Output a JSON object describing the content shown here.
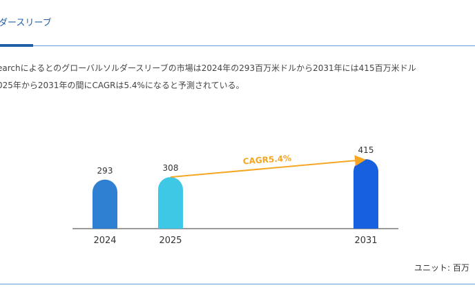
{
  "tab": {
    "label": "ダースリーブ"
  },
  "description": {
    "line1": "earchによるとのグローバルソルダースリーブの市場は2024年の293百万米ドルから2031年には415百万米ドル",
    "line2": "025年から2031年の間にCAGRは5.4%になると予測されている。"
  },
  "chart_data": {
    "type": "bar",
    "categories": [
      "2024",
      "2025",
      "2031"
    ],
    "values": [
      293,
      308,
      415
    ],
    "colors": [
      "#2f7fd3",
      "#3ec8e6",
      "#1760e0"
    ],
    "annotation": "CAGR5.4%",
    "annotation_color": "#f5a623",
    "unit_label": "ユニット: 百万"
  }
}
